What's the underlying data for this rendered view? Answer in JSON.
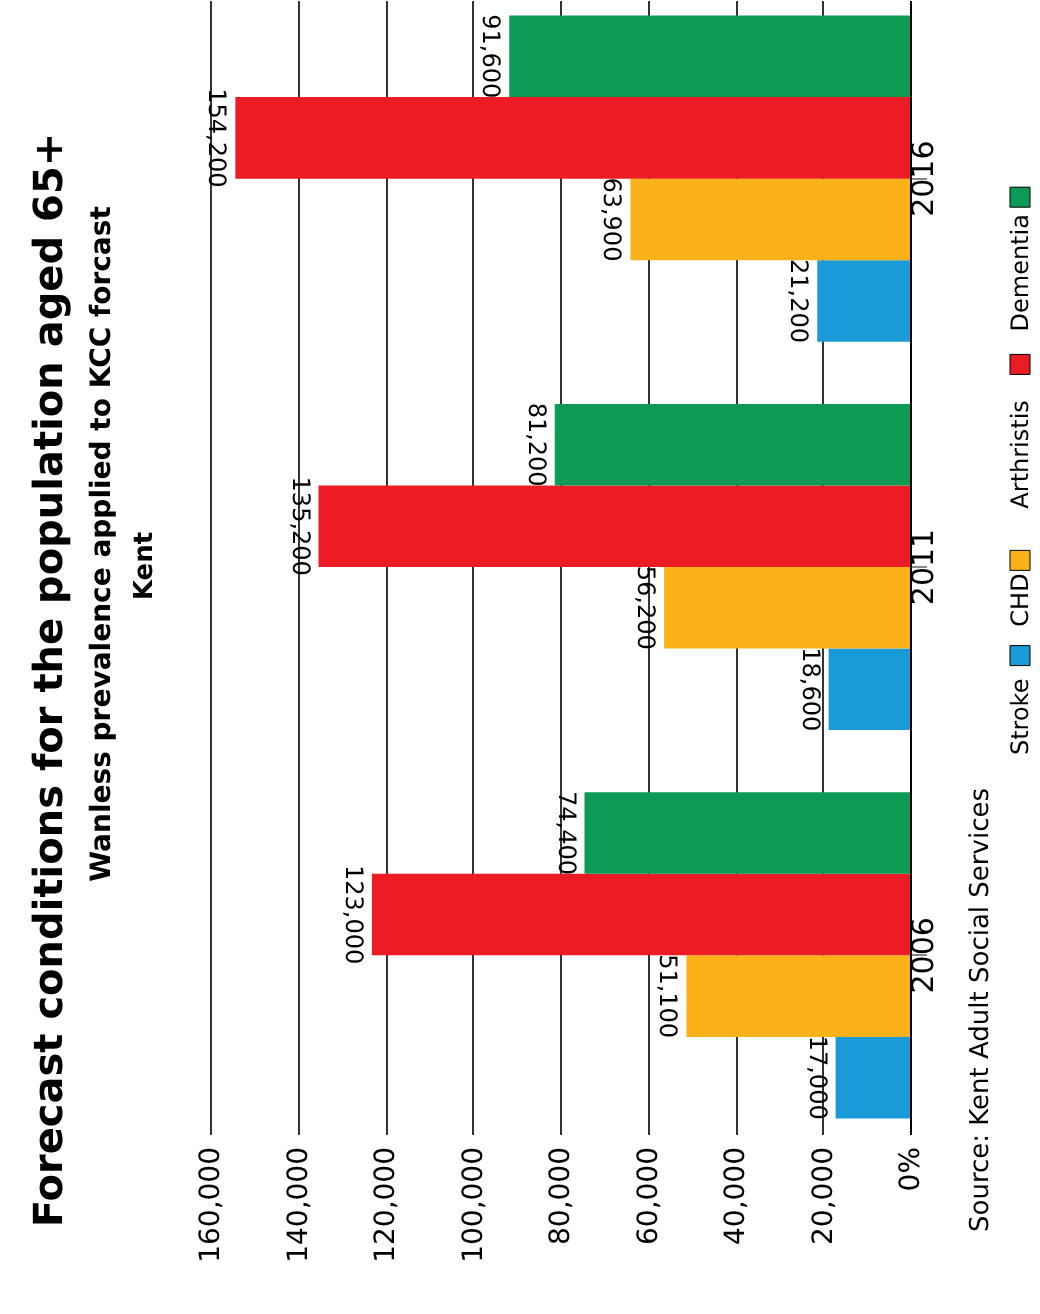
{
  "chart_data": {
    "type": "bar",
    "title": "Forecast conditions for the population aged 65+",
    "subtitle": "Wanless prevalence applied to KCC forcast",
    "annotations": [
      "Kent",
      "Source: Kent Adult Social Services"
    ],
    "orientation": "horizontal",
    "categories": [
      "2016",
      "2011",
      "2006"
    ],
    "series": [
      {
        "name": "Stroke",
        "color": "#1a9ad6",
        "values": [
          21200,
          18600,
          17000
        ],
        "value_labels": [
          "21,200",
          "18,600",
          "17,000"
        ]
      },
      {
        "name": "CHD",
        "color": "#fbb11a",
        "values": [
          63900,
          56200,
          51100
        ],
        "value_labels": [
          "63,900",
          "56,200",
          "51,100"
        ]
      },
      {
        "name": "Arthristis",
        "color": "#ec1c24",
        "values": [
          154200,
          135200,
          123000
        ],
        "value_labels": [
          "154,200",
          "135,200",
          "123,000"
        ]
      },
      {
        "name": "Dementia",
        "color": "#0d9a55",
        "values": [
          91600,
          81200,
          74400
        ],
        "value_labels": [
          "91,600",
          "81,200",
          "74,400"
        ]
      }
    ],
    "xlim": [
      160000,
      0
    ],
    "xticks": [
      {
        "value": 160000,
        "label": "160,000"
      },
      {
        "value": 140000,
        "label": "140,000"
      },
      {
        "value": 120000,
        "label": "120,000"
      },
      {
        "value": 100000,
        "label": "100,000"
      },
      {
        "value": 80000,
        "label": "80,000"
      },
      {
        "value": 60000,
        "label": "60,000"
      },
      {
        "value": 40000,
        "label": "40,000"
      },
      {
        "value": 20000,
        "label": "20,000"
      },
      {
        "value": 0,
        "label": "0%"
      }
    ],
    "grid": "x",
    "legend": "right"
  }
}
